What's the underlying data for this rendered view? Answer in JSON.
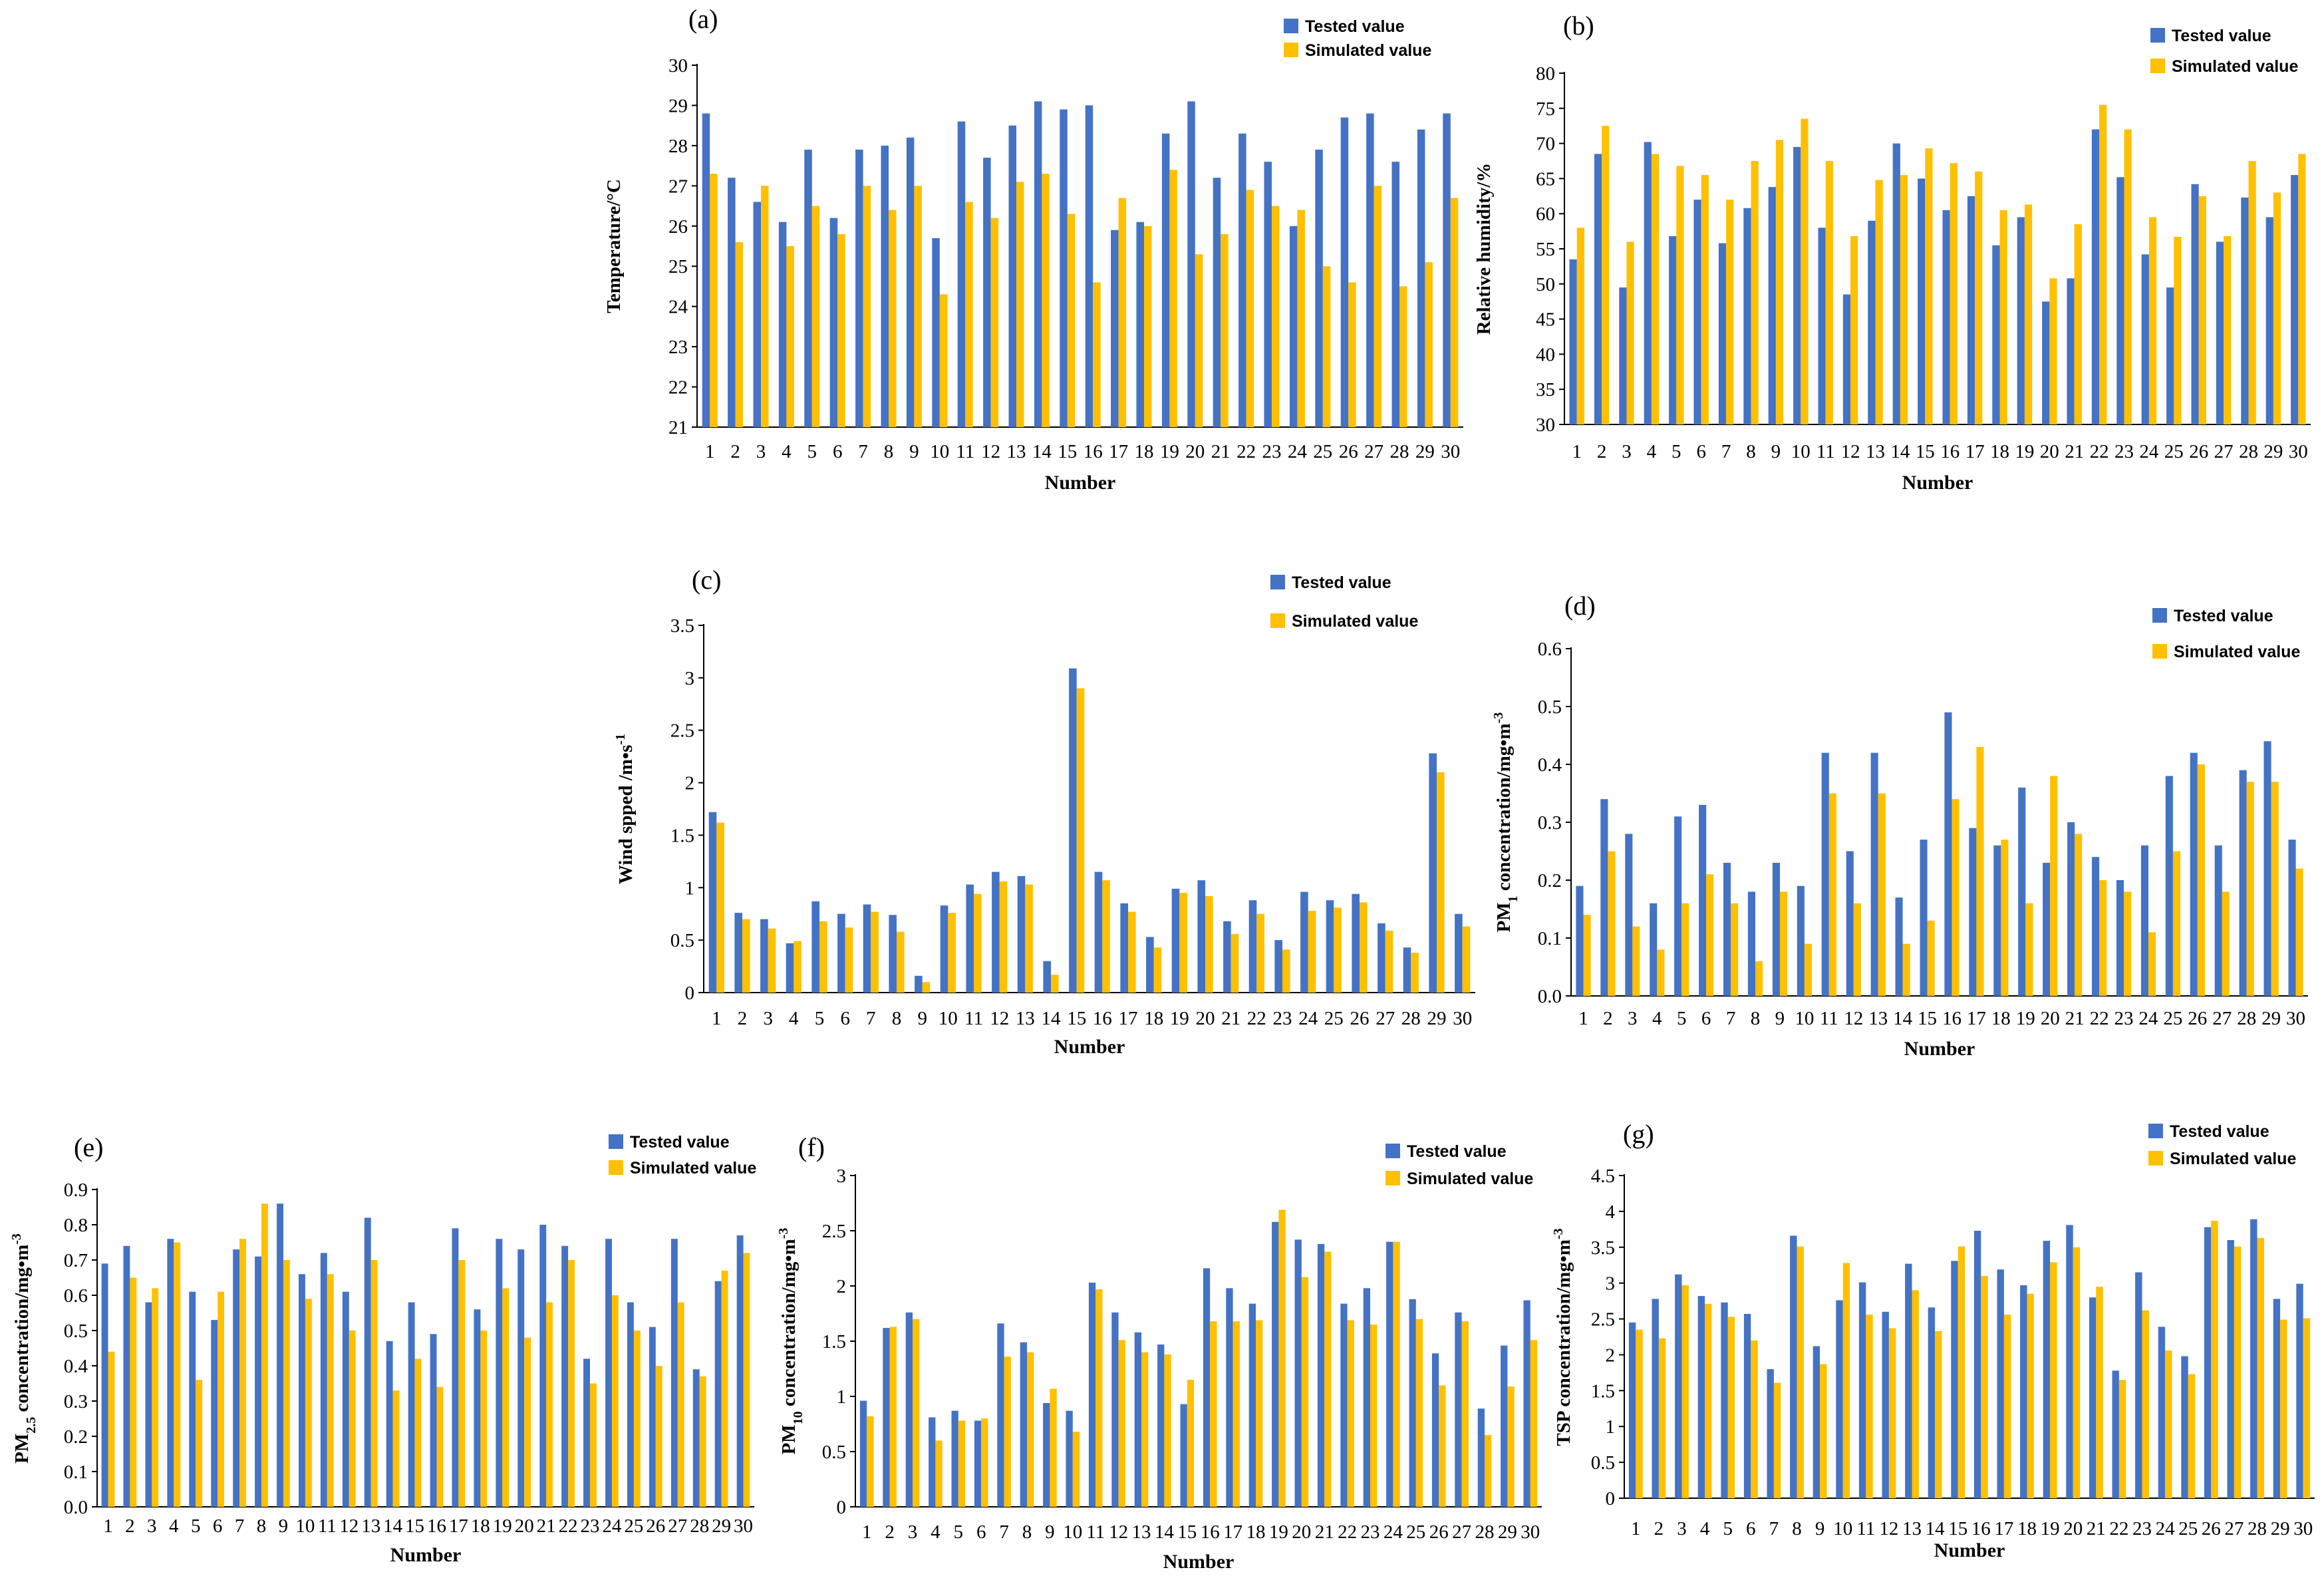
{
  "colors": {
    "tested": "#4472C4",
    "simulated": "#FFC000",
    "axis": "#000000"
  },
  "chart_data": [
    {
      "panel": "(a)",
      "type": "bar",
      "xlabel": "Number",
      "ylabel": "Temperature/°C",
      "ylim": [
        21,
        30
      ],
      "ystep": 1,
      "ytick_decimals": 0,
      "categories": [
        "1",
        "2",
        "3",
        "4",
        "5",
        "6",
        "7",
        "8",
        "9",
        "10",
        "11",
        "12",
        "13",
        "14",
        "15",
        "16",
        "17",
        "18",
        "19",
        "20",
        "21",
        "22",
        "23",
        "24",
        "25",
        "26",
        "27",
        "28",
        "29",
        "30"
      ],
      "series": [
        {
          "name": "Tested value",
          "values": [
            28.8,
            27.2,
            26.6,
            26.1,
            27.9,
            26.2,
            27.9,
            28.0,
            28.2,
            25.7,
            28.6,
            27.7,
            28.5,
            29.1,
            28.9,
            29.0,
            25.9,
            26.1,
            28.3,
            29.1,
            27.2,
            28.3,
            27.6,
            26.0,
            27.9,
            28.7,
            28.8,
            27.6,
            28.4,
            28.8
          ]
        },
        {
          "name": "Simulated value",
          "values": [
            27.3,
            25.6,
            27.0,
            25.5,
            26.5,
            25.8,
            27.0,
            26.4,
            27.0,
            24.3,
            26.6,
            26.2,
            27.1,
            27.3,
            26.3,
            24.6,
            26.7,
            26.0,
            27.4,
            25.3,
            25.8,
            26.9,
            26.5,
            26.4,
            25.0,
            24.6,
            27.0,
            24.5,
            25.1,
            26.7
          ]
        }
      ]
    },
    {
      "panel": "(b)",
      "type": "bar",
      "xlabel": "Number",
      "ylabel": "Relative humidity/%",
      "ylim": [
        30,
        80
      ],
      "ystep": 5,
      "ytick_decimals": 0,
      "categories": [
        "1",
        "2",
        "3",
        "4",
        "5",
        "6",
        "7",
        "8",
        "9",
        "10",
        "11",
        "12",
        "13",
        "14",
        "15",
        "16",
        "17",
        "18",
        "19",
        "20",
        "21",
        "22",
        "23",
        "24",
        "25",
        "26",
        "27",
        "28",
        "29",
        "30"
      ],
      "series": [
        {
          "name": "Tested value",
          "values": [
            53.5,
            68.5,
            49.5,
            70.2,
            56.8,
            62.0,
            55.8,
            60.8,
            63.8,
            69.5,
            58.0,
            48.5,
            59.0,
            70.0,
            65.0,
            60.5,
            62.5,
            55.5,
            59.5,
            47.5,
            50.8,
            72.0,
            65.2,
            54.2,
            49.5,
            64.2,
            56.0,
            62.3,
            59.5,
            65.5
          ]
        },
        {
          "name": "Simulated value",
          "values": [
            58.0,
            72.5,
            56.0,
            68.5,
            66.8,
            65.5,
            62.0,
            67.5,
            70.5,
            73.5,
            67.5,
            56.8,
            64.8,
            65.5,
            69.3,
            67.2,
            66.0,
            60.5,
            61.3,
            50.8,
            58.5,
            75.5,
            72.0,
            59.5,
            56.7,
            62.5,
            56.8,
            67.5,
            63.0,
            68.5
          ]
        }
      ]
    },
    {
      "panel": "(c)",
      "type": "bar",
      "xlabel": "Number",
      "ylabel": "Wind spped /m•s-1",
      "ylim": [
        0,
        3.5
      ],
      "ystep": 0.5,
      "ytick_decimals": -1,
      "categories": [
        "1",
        "2",
        "3",
        "4",
        "5",
        "6",
        "7",
        "8",
        "9",
        "10",
        "11",
        "12",
        "13",
        "14",
        "15",
        "16",
        "17",
        "18",
        "19",
        "20",
        "21",
        "22",
        "23",
        "24",
        "25",
        "26",
        "27",
        "28",
        "29",
        "30"
      ],
      "series": [
        {
          "name": "Tested value",
          "values": [
            1.72,
            0.76,
            0.7,
            0.47,
            0.87,
            0.75,
            0.84,
            0.74,
            0.16,
            0.83,
            1.03,
            1.15,
            1.11,
            0.3,
            3.09,
            1.15,
            0.85,
            0.53,
            0.99,
            1.07,
            0.68,
            0.88,
            0.5,
            0.96,
            0.88,
            0.94,
            0.66,
            0.43,
            2.28,
            0.75
          ]
        },
        {
          "name": "Simulated value",
          "values": [
            1.62,
            0.7,
            0.61,
            0.49,
            0.68,
            0.62,
            0.77,
            0.58,
            0.1,
            0.76,
            0.94,
            1.06,
            1.03,
            0.17,
            2.9,
            1.07,
            0.77,
            0.43,
            0.95,
            0.92,
            0.56,
            0.75,
            0.41,
            0.78,
            0.81,
            0.86,
            0.59,
            0.38,
            2.1,
            0.63
          ]
        }
      ]
    },
    {
      "panel": "(d)",
      "type": "bar",
      "xlabel": "Number",
      "ylabel": "PM1 concentration/mg•m-3",
      "ylim": [
        0,
        0.6
      ],
      "ystep": 0.1,
      "ytick_decimals": 1,
      "categories": [
        "1",
        "2",
        "3",
        "4",
        "5",
        "6",
        "7",
        "8",
        "9",
        "10",
        "11",
        "12",
        "13",
        "14",
        "15",
        "16",
        "17",
        "18",
        "19",
        "20",
        "21",
        "22",
        "23",
        "24",
        "25",
        "26",
        "27",
        "28",
        "29",
        "30"
      ],
      "series": [
        {
          "name": "Tested value",
          "values": [
            0.19,
            0.34,
            0.28,
            0.16,
            0.31,
            0.33,
            0.23,
            0.18,
            0.23,
            0.19,
            0.42,
            0.25,
            0.42,
            0.17,
            0.27,
            0.49,
            0.29,
            0.26,
            0.36,
            0.23,
            0.3,
            0.24,
            0.2,
            0.26,
            0.38,
            0.42,
            0.26,
            0.39,
            0.44,
            0.27
          ]
        },
        {
          "name": "Simulated value",
          "values": [
            0.14,
            0.25,
            0.12,
            0.08,
            0.16,
            0.21,
            0.16,
            0.06,
            0.18,
            0.09,
            0.35,
            0.16,
            0.35,
            0.09,
            0.13,
            0.34,
            0.43,
            0.27,
            0.16,
            0.38,
            0.28,
            0.2,
            0.18,
            0.11,
            0.25,
            0.4,
            0.18,
            0.37,
            0.37,
            0.22
          ]
        }
      ]
    },
    {
      "panel": "(e)",
      "type": "bar",
      "xlabel": "Number",
      "ylabel": "PM2.5 concentration/mg•m-3",
      "ylim": [
        0,
        0.9
      ],
      "ystep": 0.1,
      "ytick_decimals": 1,
      "categories": [
        "1",
        "2",
        "3",
        "4",
        "5",
        "6",
        "7",
        "8",
        "9",
        "10",
        "11",
        "12",
        "13",
        "14",
        "15",
        "16",
        "17",
        "18",
        "19",
        "20",
        "21",
        "22",
        "23",
        "24",
        "25",
        "26",
        "27",
        "28",
        "29",
        "30"
      ],
      "series": [
        {
          "name": "Tested value",
          "values": [
            0.69,
            0.74,
            0.58,
            0.76,
            0.61,
            0.53,
            0.73,
            0.71,
            0.86,
            0.66,
            0.72,
            0.61,
            0.82,
            0.47,
            0.58,
            0.49,
            0.79,
            0.56,
            0.76,
            0.73,
            0.8,
            0.74,
            0.42,
            0.76,
            0.58,
            0.51,
            0.76,
            0.39,
            0.64,
            0.77
          ]
        },
        {
          "name": "Simulated value",
          "values": [
            0.44,
            0.65,
            0.62,
            0.75,
            0.36,
            0.61,
            0.76,
            0.86,
            0.7,
            0.59,
            0.66,
            0.5,
            0.7,
            0.33,
            0.42,
            0.34,
            0.7,
            0.5,
            0.62,
            0.48,
            0.58,
            0.7,
            0.35,
            0.6,
            0.5,
            0.4,
            0.58,
            0.37,
            0.67,
            0.72
          ]
        }
      ]
    },
    {
      "panel": "(f)",
      "type": "bar",
      "xlabel": "Number",
      "ylabel": "PM10 concentration/mg•m-3",
      "ylim": [
        0,
        3
      ],
      "ystep": 0.5,
      "ytick_decimals": -1,
      "categories": [
        "1",
        "2",
        "3",
        "4",
        "5",
        "6",
        "7",
        "8",
        "9",
        "10",
        "11",
        "12",
        "13",
        "14",
        "15",
        "16",
        "17",
        "18",
        "19",
        "20",
        "21",
        "22",
        "23",
        "24",
        "25",
        "26",
        "27",
        "28",
        "29",
        "30"
      ],
      "series": [
        {
          "name": "Tested value",
          "values": [
            0.96,
            1.62,
            1.76,
            0.81,
            0.87,
            0.78,
            1.66,
            1.49,
            0.94,
            0.87,
            2.03,
            1.76,
            1.58,
            1.47,
            0.93,
            2.16,
            1.98,
            1.84,
            2.58,
            2.42,
            2.38,
            1.84,
            1.98,
            2.4,
            1.88,
            1.39,
            1.76,
            0.89,
            1.46,
            1.87
          ]
        },
        {
          "name": "Simulated value",
          "values": [
            0.82,
            1.63,
            1.7,
            0.6,
            0.78,
            0.8,
            1.36,
            1.4,
            1.07,
            0.68,
            1.97,
            1.51,
            1.4,
            1.38,
            1.15,
            1.68,
            1.68,
            1.69,
            2.69,
            2.08,
            2.31,
            1.69,
            1.65,
            2.4,
            1.7,
            1.1,
            1.68,
            0.65,
            1.09,
            1.51
          ]
        }
      ]
    },
    {
      "panel": "(g)",
      "type": "bar",
      "xlabel": "Number",
      "ylabel": "TSP concentration/mg•m-3",
      "ylim": [
        0,
        4.5
      ],
      "ystep": 0.5,
      "ytick_decimals": -1,
      "categories": [
        "1",
        "2",
        "3",
        "4",
        "5",
        "6",
        "7",
        "8",
        "9",
        "10",
        "11",
        "12",
        "13",
        "14",
        "15",
        "16",
        "17",
        "18",
        "19",
        "20",
        "21",
        "22",
        "23",
        "24",
        "25",
        "26",
        "27",
        "28",
        "29",
        "30"
      ],
      "series": [
        {
          "name": "Tested value",
          "values": [
            2.45,
            2.78,
            3.12,
            2.82,
            2.73,
            2.57,
            1.8,
            3.66,
            2.12,
            2.76,
            3.01,
            2.6,
            3.27,
            2.66,
            3.31,
            3.73,
            3.19,
            2.97,
            3.59,
            3.81,
            2.8,
            1.78,
            3.15,
            2.39,
            1.98,
            3.78,
            3.6,
            3.89,
            2.78,
            2.99
          ]
        },
        {
          "name": "Simulated value",
          "values": [
            2.35,
            2.23,
            2.97,
            2.71,
            2.53,
            2.2,
            1.61,
            3.51,
            1.87,
            3.28,
            2.56,
            2.37,
            2.9,
            2.33,
            3.51,
            3.1,
            2.56,
            2.85,
            3.29,
            3.5,
            2.95,
            1.65,
            2.62,
            2.06,
            1.73,
            3.87,
            3.51,
            3.63,
            2.49,
            2.51
          ]
        }
      ]
    }
  ]
}
